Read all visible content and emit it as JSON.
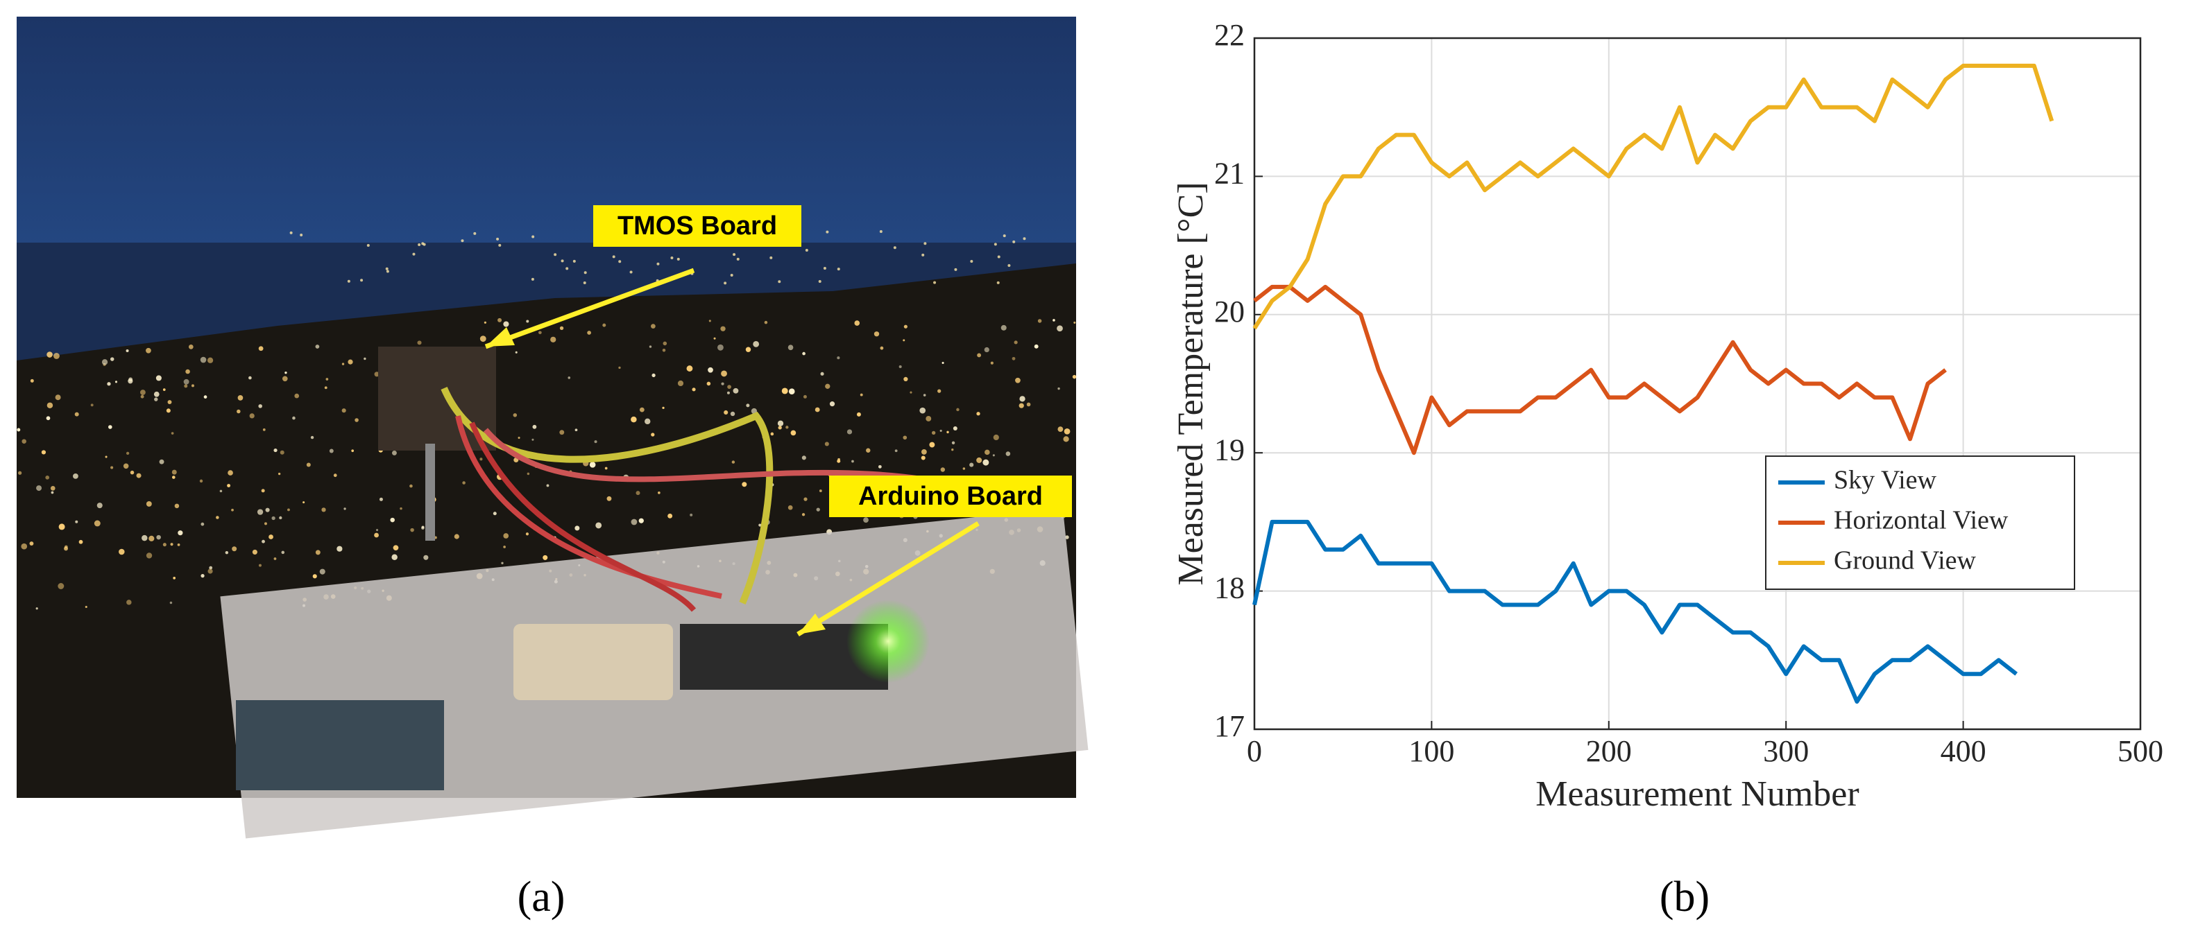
{
  "panels": {
    "a": {
      "label": "(a)",
      "annotations": [
        "TMOS Board",
        "Arduino Board"
      ]
    },
    "b": {
      "label": "(b)"
    }
  },
  "chart_data": {
    "type": "line",
    "xlabel": "Measurement Number",
    "ylabel": "Measured Temperature [°C]",
    "xlim": [
      0,
      500
    ],
    "ylim": [
      17,
      22
    ],
    "xticks": [
      0,
      100,
      200,
      300,
      400,
      500
    ],
    "yticks": [
      17,
      18,
      19,
      20,
      21,
      22
    ],
    "grid": true,
    "legend": "right",
    "x": [
      0,
      10,
      20,
      30,
      40,
      50,
      60,
      70,
      80,
      90,
      100,
      110,
      120,
      130,
      140,
      150,
      160,
      170,
      180,
      190,
      200,
      210,
      220,
      230,
      240,
      250,
      260,
      270,
      280,
      290,
      300,
      310,
      320,
      330,
      340,
      350,
      360,
      370,
      380,
      390,
      400,
      410,
      420,
      430,
      440,
      450
    ],
    "series": [
      {
        "name": "Sky View",
        "color": "#0072bd",
        "values": [
          17.9,
          18.5,
          18.5,
          18.5,
          18.3,
          18.3,
          18.4,
          18.2,
          18.2,
          18.2,
          18.2,
          18.0,
          18.0,
          18.0,
          17.9,
          17.9,
          17.9,
          18.0,
          18.2,
          17.9,
          18.0,
          18.0,
          17.9,
          17.7,
          17.9,
          17.9,
          17.8,
          17.7,
          17.7,
          17.6,
          17.4,
          17.6,
          17.5,
          17.5,
          17.2,
          17.4,
          17.5,
          17.5,
          17.6,
          17.5,
          17.4,
          17.4,
          17.5,
          17.4,
          null,
          null
        ]
      },
      {
        "name": "Horizontal View",
        "color": "#d95319",
        "values": [
          20.1,
          20.2,
          20.2,
          20.1,
          20.2,
          20.1,
          20.0,
          19.6,
          19.3,
          19.0,
          19.4,
          19.2,
          19.3,
          19.3,
          19.3,
          19.3,
          19.4,
          19.4,
          19.5,
          19.6,
          19.4,
          19.4,
          19.5,
          19.4,
          19.3,
          19.4,
          19.6,
          19.8,
          19.6,
          19.5,
          19.6,
          19.5,
          19.5,
          19.4,
          19.5,
          19.4,
          19.4,
          19.1,
          19.5,
          19.6,
          null,
          null,
          null,
          null,
          null,
          null
        ]
      },
      {
        "name": "Ground View",
        "color": "#edb120",
        "values": [
          19.9,
          20.1,
          20.2,
          20.4,
          20.8,
          21.0,
          21.0,
          21.2,
          21.3,
          21.3,
          21.1,
          21.0,
          21.1,
          20.9,
          21.0,
          21.1,
          21.0,
          21.1,
          21.2,
          21.1,
          21.0,
          21.2,
          21.3,
          21.2,
          21.5,
          21.1,
          21.3,
          21.2,
          21.4,
          21.5,
          21.5,
          21.7,
          21.5,
          21.5,
          21.5,
          21.4,
          21.7,
          21.6,
          21.5,
          21.7,
          21.8,
          21.8,
          21.8,
          21.8,
          21.8,
          21.4
        ]
      }
    ]
  }
}
